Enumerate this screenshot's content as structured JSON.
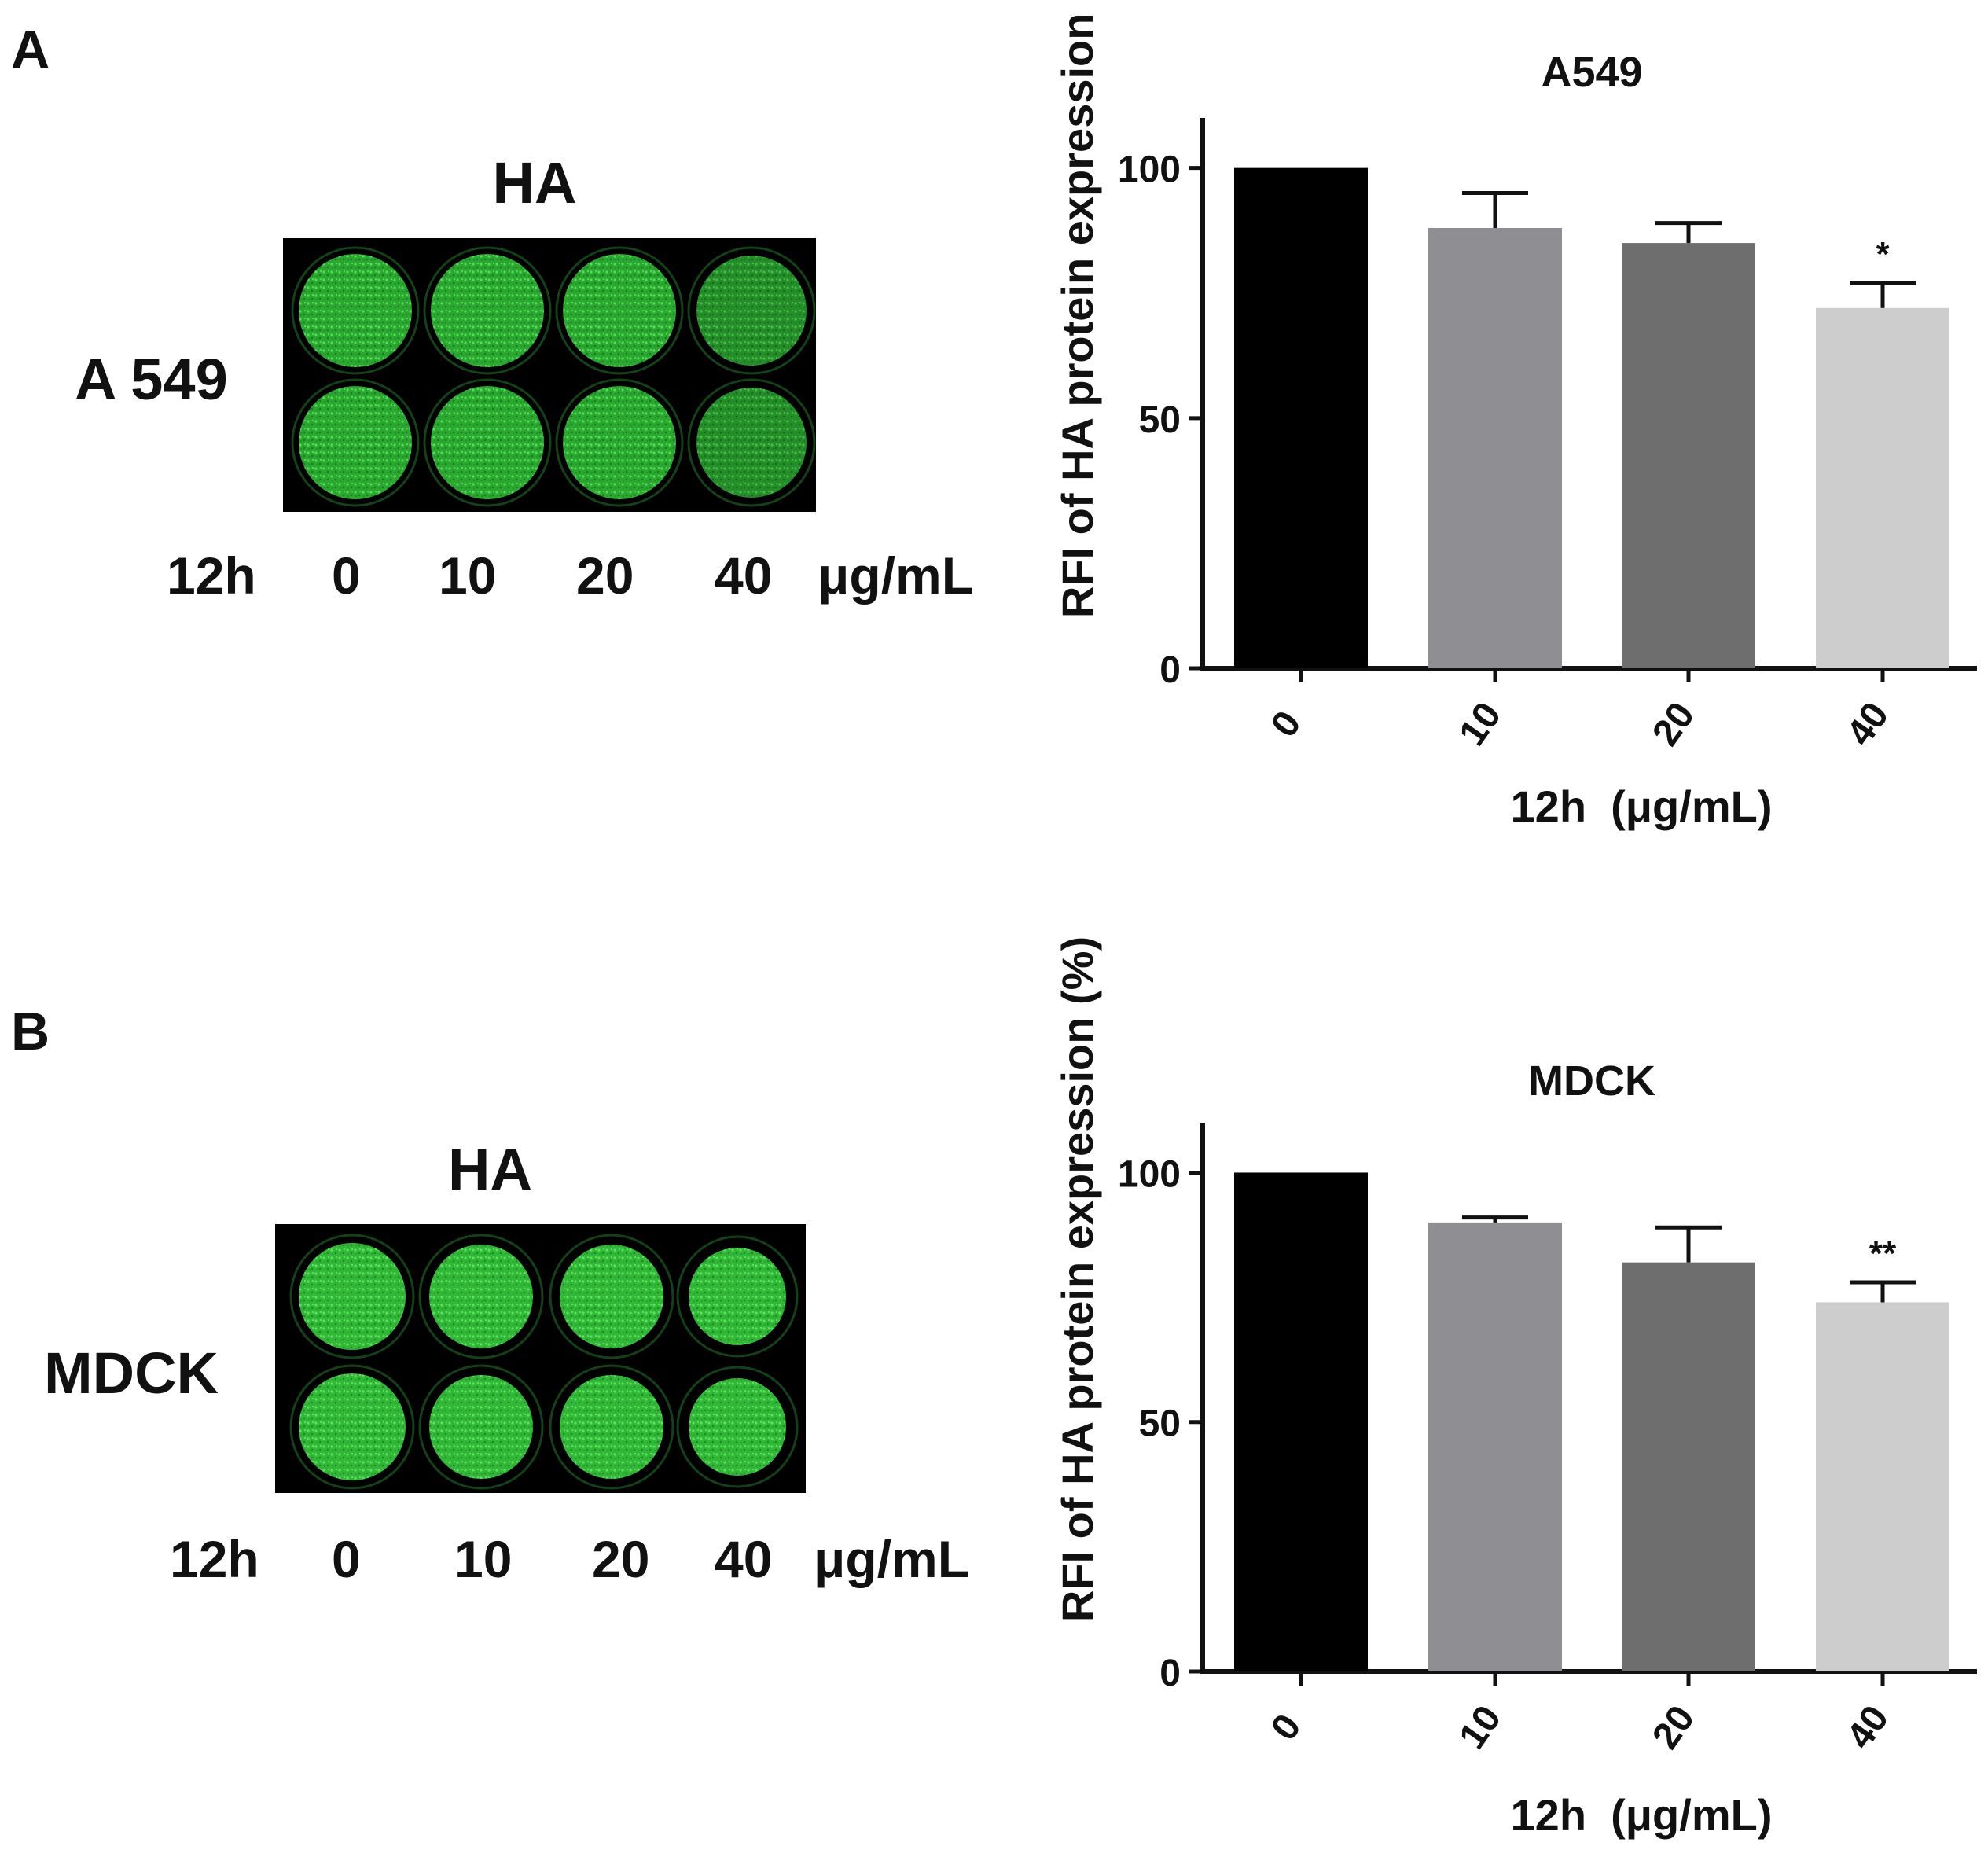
{
  "panels": [
    {
      "letter": "A",
      "plate_title": "HA",
      "cell_line": "A 549",
      "time_label": "12h",
      "concentrations": [
        "0",
        "10",
        "20",
        "40"
      ],
      "unit_label": "μg/mL"
    },
    {
      "letter": "B",
      "plate_title": "HA",
      "cell_line": "MDCK",
      "time_label": "12h",
      "concentrations": [
        "0",
        "10",
        "20",
        "40"
      ],
      "unit_label": "μg/mL"
    }
  ],
  "colors": {
    "bars": [
      "#000000",
      "#8f8e93",
      "#6e6e6e",
      "#cdcdcd"
    ],
    "fluorescence": "#34c23a",
    "plate_background": "#000000"
  },
  "chart_data": [
    {
      "type": "bar",
      "title": "A549",
      "categories": [
        "0",
        "10",
        "20",
        "40"
      ],
      "values": [
        100,
        88,
        85,
        72
      ],
      "errors": [
        0,
        7,
        4,
        5
      ],
      "significance": [
        "",
        "",
        "",
        "*"
      ],
      "ylabel": "RFI of HA protein expression (%)",
      "xlabel": "12h  (μg/mL)",
      "ylim": [
        0,
        110
      ],
      "yticks": [
        0,
        50,
        100
      ],
      "grid": false,
      "legend": "none"
    },
    {
      "type": "bar",
      "title": "MDCK",
      "categories": [
        "0",
        "10",
        "20",
        "40"
      ],
      "values": [
        100,
        90,
        82,
        74
      ],
      "errors": [
        0,
        1,
        7,
        4
      ],
      "significance": [
        "",
        "",
        "",
        "**"
      ],
      "ylabel": "RFI of HA protein expression (%)",
      "xlabel": "12h  (μg/mL)",
      "ylim": [
        0,
        110
      ],
      "yticks": [
        0,
        50,
        100
      ],
      "grid": false,
      "legend": "none"
    }
  ]
}
